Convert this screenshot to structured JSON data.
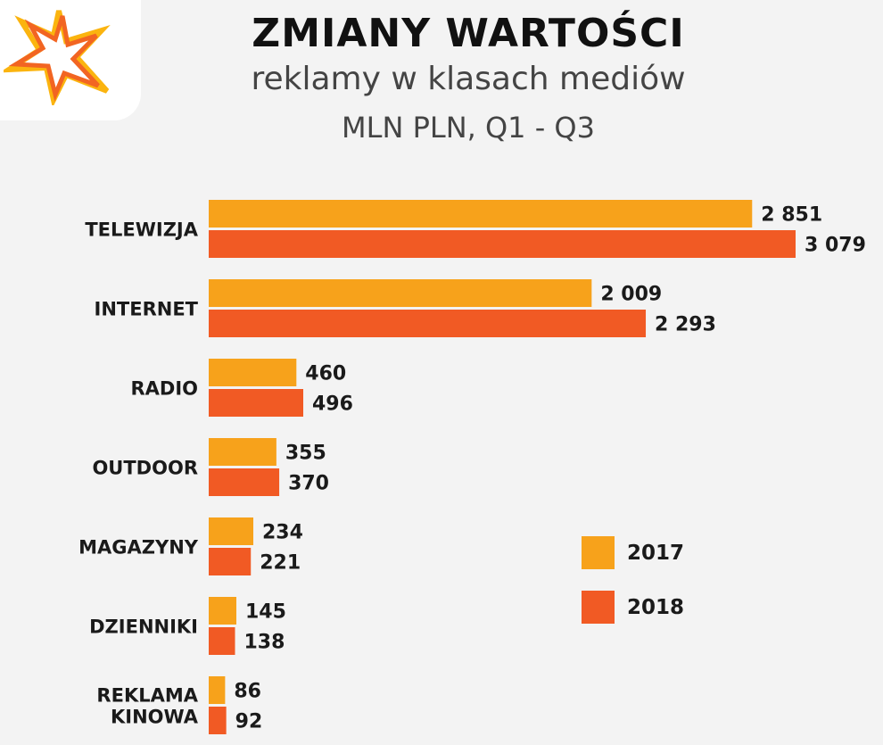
{
  "header": {
    "title": "ZMIANY WARTOŚCI",
    "subtitle": "reklamy w klasach mediów",
    "unit_line": "MLN PLN, Q1 - Q3"
  },
  "colors": {
    "series_2017": "#f7a21b",
    "series_2018": "#f15a24",
    "logo_orange": "#f26522",
    "logo_yellow": "#fbb40f"
  },
  "icons": {
    "logo": "star-burst-logo"
  },
  "chart_data": {
    "type": "bar",
    "orientation": "horizontal",
    "title": "ZMIANY WARTOŚCI",
    "subtitle": "reklamy w klasach mediów",
    "unit": "MLN PLN, Q1 - Q3",
    "categories": [
      "TELEWIZJA",
      "INTERNET",
      "RADIO",
      "OUTDOOR",
      "MAGAZYNY",
      "DZIENNIKI",
      "REKLAMA KINOWA"
    ],
    "category_lines": [
      [
        "TELEWIZJA"
      ],
      [
        "INTERNET"
      ],
      [
        "RADIO"
      ],
      [
        "OUTDOOR"
      ],
      [
        "MAGAZYNY"
      ],
      [
        "DZIENNIKI"
      ],
      [
        "REKLAMA",
        "KINOWA"
      ]
    ],
    "series": [
      {
        "name": "2017",
        "values": [
          2851,
          2009,
          460,
          355,
          234,
          145,
          86
        ],
        "labels": [
          "2 851",
          "2 009",
          "460",
          "355",
          "234",
          "145",
          "86"
        ]
      },
      {
        "name": "2018",
        "values": [
          3079,
          2293,
          496,
          370,
          221,
          138,
          92
        ],
        "labels": [
          "3 079",
          "2 293",
          "496",
          "370",
          "221",
          "138",
          "92"
        ]
      }
    ],
    "xlim": [
      0,
      3079
    ],
    "grid": false,
    "legend_position": "right"
  }
}
